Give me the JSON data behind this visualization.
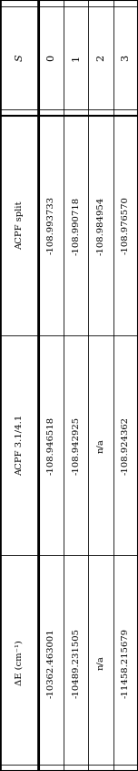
{
  "col_headers": [
    "S",
    "0",
    "1",
    "2",
    "3"
  ],
  "row_headers": [
    "ACPF split",
    "ACPF 3.1/4.1",
    "ΔE (cm⁻¹)"
  ],
  "cells": [
    [
      "-108.993733",
      "-108.990718",
      "-108.984954",
      "-108.976570"
    ],
    [
      "-108.946518",
      "-108.942925",
      "n/a",
      "-108.924362"
    ],
    [
      "-10362.463001",
      "-10489.231505",
      "n/a",
      "-11458.215679"
    ]
  ],
  "bg_color": "#ffffff",
  "text_color": "#000000",
  "font_size": 7.2,
  "header_font_size": 8.0,
  "figsize": [
    1.52,
    8.46
  ],
  "dpi": 100
}
